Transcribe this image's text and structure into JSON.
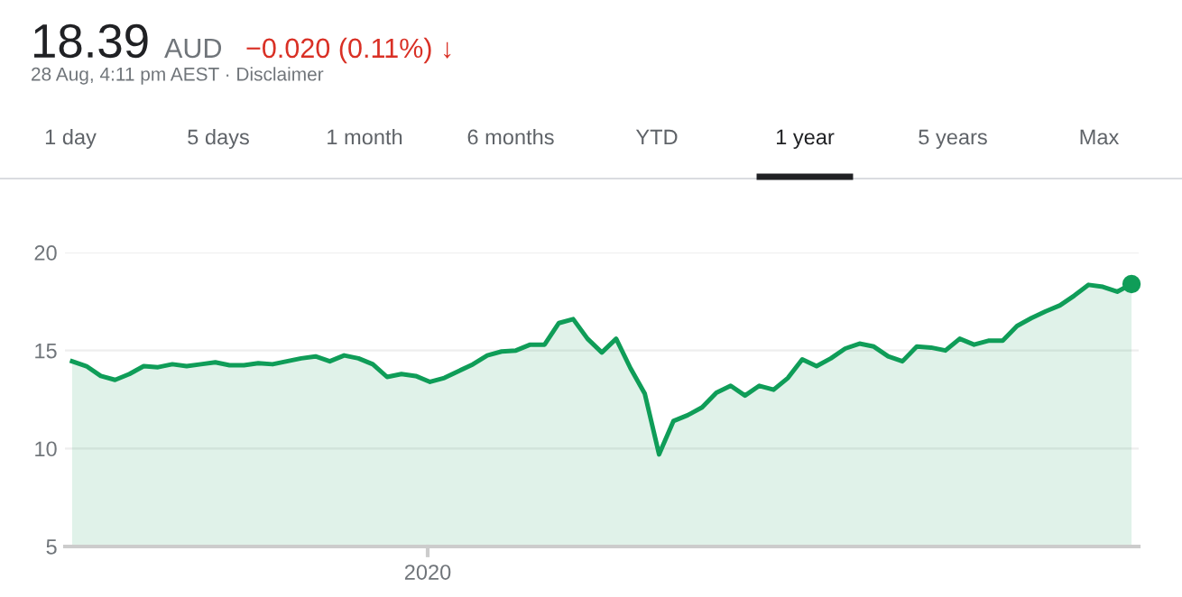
{
  "chart_data": {
    "type": "area",
    "annotations": [
      "2020",
      "18.39",
      "AUD",
      "−0.020 (0.11%) ↓",
      "28 Aug, 4:11 pm AEST · Disclaimer",
      "1 day",
      "5 days",
      "1 month",
      "6 months",
      "YTD",
      "1 year",
      "5 years",
      "Max"
    ],
    "categories": [
      null,
      null,
      null,
      null,
      null,
      null,
      null,
      null,
      null,
      null,
      null,
      null,
      null,
      null,
      null,
      null,
      null,
      null,
      null,
      null,
      null,
      null,
      null,
      null,
      null,
      null,
      null,
      null,
      null,
      null,
      null,
      null,
      null,
      null,
      null,
      null,
      null,
      null,
      null,
      null,
      null,
      null,
      null,
      null,
      null,
      null,
      null,
      null,
      null,
      null,
      null,
      null,
      null,
      null,
      null,
      null,
      null,
      null,
      null,
      null,
      null,
      null,
      null,
      null,
      null,
      null,
      null,
      null,
      null,
      null,
      null,
      null,
      null,
      null,
      null
    ],
    "ylim": [
      5,
      20
    ],
    "yticks": [
      5,
      10,
      15,
      20
    ],
    "grid": "y",
    "series": [
      {
        "color": "#0f9d58",
        "values": [
          14.45,
          14.2,
          13.7,
          13.5,
          13.8,
          14.2,
          14.15,
          14.3,
          14.2,
          14.3,
          14.4,
          14.25,
          14.25,
          14.35,
          14.3,
          14.45,
          14.6,
          14.7,
          14.45,
          14.75,
          14.6,
          14.3,
          13.65,
          13.8,
          13.7,
          13.4,
          13.6,
          13.95,
          14.3,
          14.75,
          14.95,
          15.0,
          15.3,
          15.3,
          16.4,
          16.6,
          15.6,
          14.9,
          15.6,
          14.1,
          12.8,
          9.7,
          11.4,
          11.7,
          12.1,
          12.85,
          13.2,
          12.7,
          13.2,
          13.0,
          13.6,
          14.55,
          14.2,
          14.6,
          15.1,
          15.35,
          15.2,
          14.7,
          14.45,
          15.2,
          15.15,
          15.0,
          15.6,
          15.3,
          15.5,
          15.5,
          16.25,
          16.65,
          17.0,
          17.3,
          17.8,
          18.35,
          18.25,
          18.0,
          18.39
        ]
      },
      {
        "type": "scatter",
        "color": "#0f9d58",
        "marker": "circle",
        "values": [
          null,
          null,
          null,
          null,
          null,
          null,
          null,
          null,
          null,
          null,
          null,
          null,
          null,
          null,
          null,
          null,
          null,
          null,
          null,
          null,
          null,
          null,
          null,
          null,
          null,
          null,
          null,
          null,
          null,
          null,
          null,
          null,
          null,
          null,
          null,
          null,
          null,
          null,
          null,
          null,
          null,
          null,
          null,
          null,
          null,
          null,
          null,
          null,
          null,
          null,
          null,
          null,
          null,
          null,
          null,
          null,
          null,
          null,
          null,
          null,
          null,
          null,
          null,
          null,
          null,
          null,
          null,
          null,
          null,
          null,
          null,
          null,
          null,
          null,
          18.39
        ]
      }
    ]
  }
}
